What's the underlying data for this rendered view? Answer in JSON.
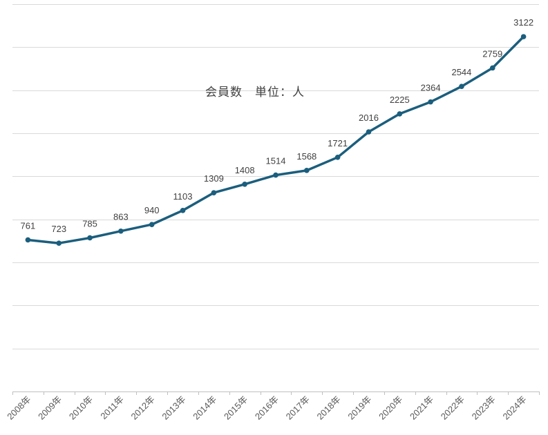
{
  "chart_data": {
    "type": "line",
    "title": "会員数　単位：人",
    "xlabel": "",
    "ylabel": "",
    "categories": [
      "2008年",
      "2009年",
      "2010年",
      "2011年",
      "2012年",
      "2013年",
      "2014年",
      "2015年",
      "2016年",
      "2017年",
      "2018年",
      "2019年",
      "2020年",
      "2021年",
      "2022年",
      "2023年",
      "2024年"
    ],
    "series": [
      {
        "values": [
          761,
          723,
          785,
          863,
          940,
          1103,
          1309,
          1408,
          1514,
          1568,
          1721,
          2016,
          2225,
          2364,
          2544,
          2759,
          3122
        ]
      }
    ],
    "ylim": [
      -1000,
      3500
    ],
    "ytick_step": 500,
    "y_tick_labels_shown": false,
    "data_labels": true,
    "legend": "none",
    "grid": "horizontal",
    "colors": {
      "series": "#1b5e7d",
      "grid": "#d9d9d9",
      "text": "#404040"
    }
  }
}
